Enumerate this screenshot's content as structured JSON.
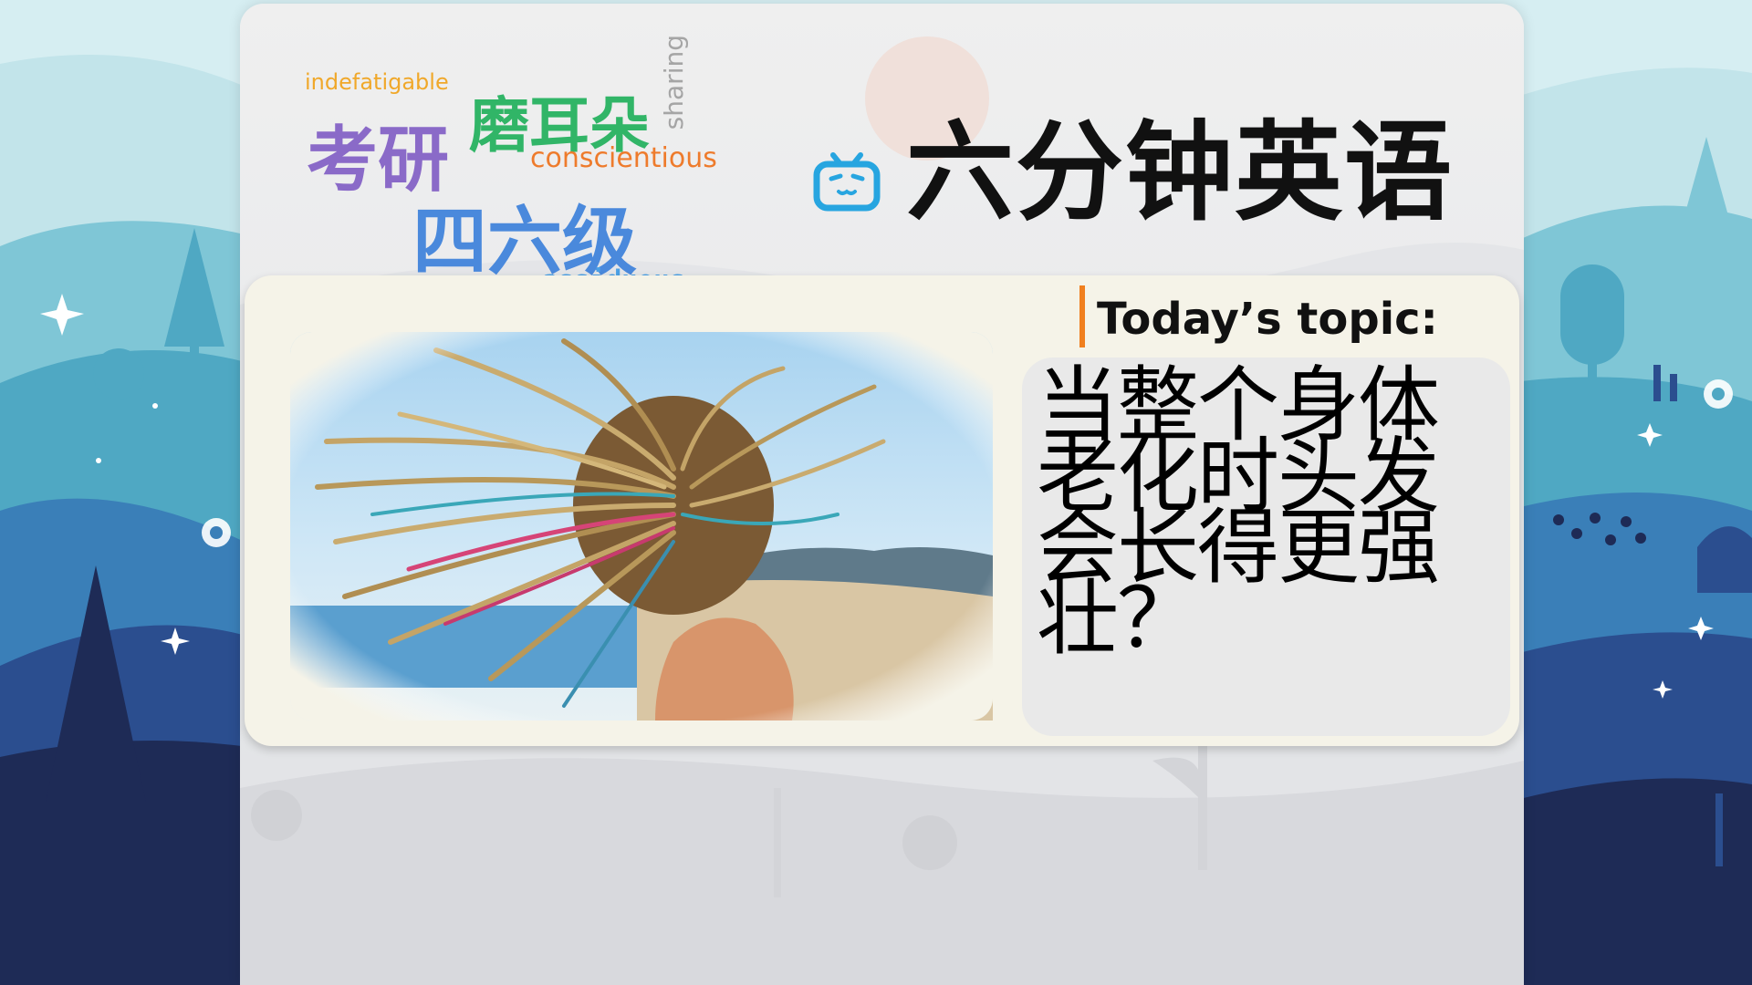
{
  "wordcloud": {
    "words": [
      "indefatigable",
      "考研",
      "磨耳朵",
      "conscientious",
      "四六级",
      "assiduous",
      "sharing"
    ]
  },
  "brand": {
    "icon": "bilibili-tv-icon",
    "title": "六分钟英语"
  },
  "topic": {
    "label": "Today’s topic:",
    "text": "当整个身体老化时头发会长得更强壮？"
  },
  "image": {
    "description_icon": "hair-braids-photo"
  },
  "colors": {
    "accent": "#f07f1e",
    "brand_icon": "#27a5e0",
    "bg_light": "#a9d8e4",
    "bg_dark": "#1e2b56"
  }
}
